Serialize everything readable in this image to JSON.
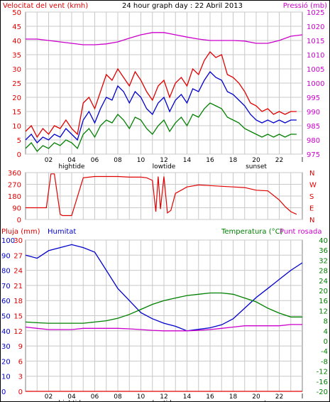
{
  "header": {
    "title": "24 hour graph day : 22 Abril 2013"
  },
  "colors": {
    "wind": "#e00000",
    "wind_avg": "#0000cc",
    "wind_low": "#008000",
    "pressure": "#cc00cc",
    "direction": "#e00000",
    "rain": "#e00000",
    "humidity": "#0000cc",
    "temperature": "#008000",
    "dewpoint": "#cc00cc",
    "grid": "#c8c8c8",
    "frame": "#808080"
  },
  "chart_data": [
    {
      "type": "line",
      "title": "24 hour graph day : 22 Abril 2013",
      "ylabel_left": "Velocitat del vent (kmh)",
      "ylabel_right": "Pressió (mb)",
      "x_ticks": [
        "02",
        "04",
        "06",
        "08",
        "10",
        "12",
        "14",
        "16",
        "18",
        "20",
        "22",
        "l"
      ],
      "markers": [
        "hightide",
        "lowtide",
        "sunset"
      ],
      "yticks_left": [
        "0",
        "5",
        "10",
        "15",
        "20",
        "25",
        "30",
        "35",
        "40",
        "45",
        "50"
      ],
      "yticks_right": [
        "975",
        "980",
        "985",
        "990",
        "995",
        "1000",
        "1005",
        "1010",
        "1015",
        "1020",
        "1025"
      ],
      "ylim_left": [
        0,
        50
      ],
      "ylim_right": [
        975,
        1025
      ],
      "series": [
        {
          "name": "",
          "color": "#e00000",
          "x": [
            0,
            0.5,
            1,
            1.5,
            2,
            2.5,
            3,
            3.5,
            4,
            4.5,
            5,
            5.5,
            6,
            6.5,
            7,
            7.5,
            8,
            8.5,
            9,
            9.5,
            10,
            10.5,
            11,
            11.5,
            12,
            12.5,
            13,
            13.5,
            14,
            14.5,
            15,
            15.5,
            16,
            16.5,
            17,
            17.5,
            18,
            18.5,
            19,
            19.5,
            20,
            20.5,
            21,
            21.5,
            22,
            22.5,
            23,
            23.5
          ],
          "values": [
            8,
            10,
            6,
            9,
            7,
            10,
            9,
            12,
            9,
            7,
            18,
            20,
            16,
            22,
            28,
            26,
            30,
            27,
            24,
            29,
            26,
            22,
            19,
            24,
            26,
            20,
            25,
            27,
            24,
            30,
            28,
            33,
            36,
            34,
            35,
            28,
            27,
            25,
            22,
            18,
            17,
            15,
            16,
            14,
            15,
            14,
            15,
            15
          ]
        },
        {
          "name": "",
          "color": "#0000cc",
          "x": [
            0,
            0.5,
            1,
            1.5,
            2,
            2.5,
            3,
            3.5,
            4,
            4.5,
            5,
            5.5,
            6,
            6.5,
            7,
            7.5,
            8,
            8.5,
            9,
            9.5,
            10,
            10.5,
            11,
            11.5,
            12,
            12.5,
            13,
            13.5,
            14,
            14.5,
            15,
            15.5,
            16,
            16.5,
            17,
            17.5,
            18,
            18.5,
            19,
            19.5,
            20,
            20.5,
            21,
            21.5,
            22,
            22.5,
            23,
            23.5
          ],
          "values": [
            5,
            7,
            4,
            6,
            5,
            7,
            6,
            9,
            7,
            5,
            12,
            15,
            11,
            16,
            20,
            19,
            24,
            22,
            18,
            22,
            20,
            16,
            14,
            18,
            20,
            15,
            19,
            21,
            18,
            23,
            22,
            26,
            29,
            27,
            26,
            22,
            21,
            19,
            17,
            14,
            12,
            11,
            12,
            11,
            12,
            11,
            12,
            12
          ]
        },
        {
          "name": "",
          "color": "#008000",
          "x": [
            0,
            0.5,
            1,
            1.5,
            2,
            2.5,
            3,
            3.5,
            4,
            4.5,
            5,
            5.5,
            6,
            6.5,
            7,
            7.5,
            8,
            8.5,
            9,
            9.5,
            10,
            10.5,
            11,
            11.5,
            12,
            12.5,
            13,
            13.5,
            14,
            14.5,
            15,
            15.5,
            16,
            16.5,
            17,
            17.5,
            18,
            18.5,
            19,
            19.5,
            20,
            20.5,
            21,
            21.5,
            22,
            22.5,
            23,
            23.5
          ],
          "values": [
            2,
            4,
            1,
            3,
            2,
            4,
            3,
            5,
            4,
            2,
            7,
            9,
            6,
            10,
            12,
            11,
            14,
            12,
            9,
            13,
            12,
            9,
            7,
            10,
            12,
            8,
            11,
            13,
            10,
            14,
            13,
            16,
            18,
            17,
            16,
            13,
            12,
            11,
            9,
            8,
            7,
            6,
            7,
            6,
            7,
            6,
            7,
            7
          ]
        },
        {
          "name": "",
          "color": "#cc00cc",
          "axis": "right",
          "x": [
            0,
            1,
            2,
            3,
            4,
            5,
            6,
            7,
            8,
            9,
            10,
            11,
            12,
            13,
            14,
            15,
            16,
            17,
            18,
            19,
            20,
            21,
            22,
            23,
            24
          ],
          "values": [
            1015.5,
            1015.5,
            1015,
            1014.5,
            1014,
            1013.5,
            1013.5,
            1013.8,
            1014.5,
            1015.8,
            1017,
            1017.8,
            1017.8,
            1017,
            1016.2,
            1015.5,
            1015,
            1015,
            1015,
            1014.8,
            1014,
            1014,
            1015,
            1016.5,
            1017
          ]
        }
      ]
    },
    {
      "type": "line",
      "yticks_left": [
        "360",
        "270",
        "180",
        "90",
        "0"
      ],
      "yticks_right": [
        "N",
        "W",
        "S",
        "E",
        "N"
      ],
      "ylim_left": [
        0,
        360
      ],
      "series": [
        {
          "name": "",
          "color": "#e00000",
          "x": [
            0,
            1,
            1.8,
            2.2,
            2.5,
            3,
            3.2,
            3.4,
            4,
            5,
            6,
            7,
            8,
            9,
            10,
            10.5,
            11,
            11.3,
            11.5,
            11.7,
            12,
            12.3,
            12.6,
            13,
            14,
            15,
            16,
            17,
            18,
            19,
            20,
            21,
            22,
            22.5,
            23,
            23.5
          ],
          "values": [
            90,
            90,
            90,
            350,
            350,
            40,
            30,
            30,
            30,
            320,
            330,
            330,
            330,
            325,
            325,
            320,
            300,
            60,
            330,
            80,
            330,
            50,
            70,
            200,
            250,
            265,
            260,
            255,
            250,
            245,
            225,
            220,
            150,
            100,
            60,
            40
          ]
        }
      ]
    },
    {
      "type": "line",
      "ylabel_left": "Pluja (mm)",
      "ylabel_left2": "Humitat",
      "ylabel_right": "Temperatura (°C)",
      "ylabel_right2": "Punt rosada",
      "x_ticks": [
        "02",
        "04",
        "06",
        "08",
        "10",
        "12",
        "14",
        "16",
        "18",
        "20",
        "22",
        "l"
      ],
      "markers": [
        "hightide",
        "lowtide",
        "sunset"
      ],
      "yticks_left": [
        "0",
        "3",
        "6",
        "9",
        "12",
        "15",
        "18",
        "21",
        "24",
        "27",
        "30"
      ],
      "yticks_left2": [
        "0",
        "10",
        "20",
        "30",
        "40",
        "50",
        "60",
        "70",
        "80",
        "90",
        "100"
      ],
      "yticks_right": [
        "-20",
        "-16",
        "-12",
        "-8",
        "-4",
        "0",
        "4",
        "8",
        "12",
        "16",
        "20",
        "24",
        "28",
        "32",
        "36",
        "40"
      ],
      "ylim_left": [
        0,
        30
      ],
      "ylim_left2": [
        0,
        100
      ],
      "ylim_right": [
        -20,
        40
      ],
      "series": [
        {
          "name": "",
          "color": "#0000cc",
          "axis": "left2",
          "x": [
            0,
            1,
            2,
            3,
            4,
            5,
            6,
            7,
            8,
            9,
            10,
            11,
            12,
            13,
            14,
            15,
            16,
            17,
            18,
            19,
            20,
            21,
            22,
            23,
            24
          ],
          "values": [
            90,
            88,
            93,
            95,
            97,
            95,
            92,
            80,
            68,
            60,
            52,
            48,
            45,
            43,
            40,
            41,
            42,
            44,
            48,
            55,
            62,
            68,
            74,
            80,
            85
          ]
        },
        {
          "name": "",
          "color": "#008000",
          "axis": "right",
          "x": [
            0,
            1,
            2,
            3,
            4,
            5,
            6,
            7,
            8,
            9,
            10,
            11,
            12,
            13,
            14,
            15,
            16,
            17,
            18,
            19,
            20,
            21,
            22,
            23,
            24
          ],
          "values": [
            7.5,
            7.2,
            7,
            7,
            7,
            7,
            7.5,
            8,
            9,
            10.5,
            12.5,
            14.5,
            16,
            17,
            18,
            18.5,
            19,
            19,
            18.5,
            17,
            15.5,
            13,
            11,
            9.5,
            9.5
          ]
        },
        {
          "name": "",
          "color": "#cc00cc",
          "axis": "right",
          "x": [
            0,
            1,
            2,
            3,
            4,
            5,
            6,
            7,
            8,
            9,
            10,
            11,
            12,
            13,
            14,
            15,
            16,
            17,
            18,
            19,
            20,
            21,
            22,
            23,
            24
          ],
          "values": [
            5.5,
            5,
            4.5,
            4.5,
            4.5,
            5,
            5,
            5,
            5,
            4.8,
            4.5,
            4.2,
            4,
            4,
            4,
            4.2,
            4.5,
            5,
            5.5,
            6,
            6,
            6,
            6,
            6.5,
            6.5
          ]
        },
        {
          "name": "",
          "color": "#e00000",
          "axis": "left",
          "x": [
            0,
            24
          ],
          "values": [
            0,
            0
          ]
        }
      ]
    }
  ]
}
